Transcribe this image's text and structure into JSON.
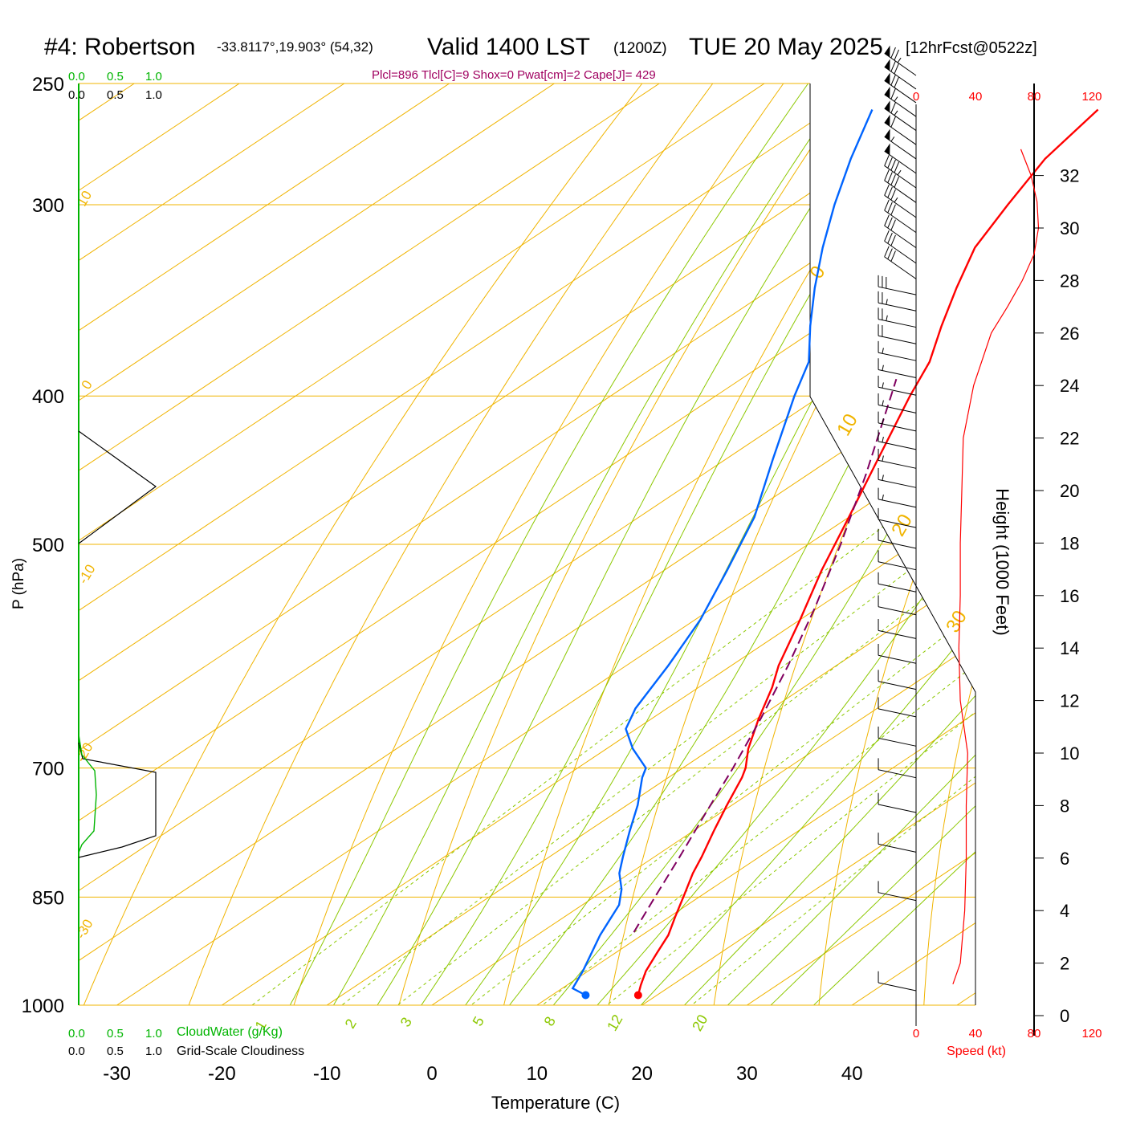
{
  "header": {
    "station": "#4: Robertson",
    "coords": "-33.8117°,19.903° (54,32)",
    "valid": "Valid 1400 LST",
    "zulu": "(1200Z)",
    "date": "TUE 20 May 2025",
    "forecast": "[12hrFcst@0522z]"
  },
  "indices": "Plcl=896 Tlcl[C]=9 Shox=0 Pwat[cm]=2 Cape[J]= 429",
  "colors": {
    "isotherm": "#f0b400",
    "dry_adiabat": "#f0b400",
    "moist_adiabat": "#8cc800",
    "mixing_ratio": "#8cc800",
    "temperature": "#ff0000",
    "dewpoint": "#0064ff",
    "parcel": "#800060",
    "cloudwater": "#00b400",
    "wind_speed": "#ff0000",
    "indices_text": "#a00060"
  },
  "cloud_panel": {
    "cloudwater_ticks": [
      "0.0",
      "0.5",
      "1.0"
    ],
    "cloudiness_ticks": [
      "0.0",
      "0.5",
      "1.0"
    ],
    "cloudwater_label": "CloudWater (g/Kg)",
    "cloudiness_label": "Grid-Scale Cloudiness"
  },
  "speed_panel": {
    "ticks": [
      "0",
      "40",
      "80",
      "120"
    ],
    "label": "Speed (kt)"
  },
  "chart_data": {
    "type": "skew-t",
    "xlabel": "Temperature (C)",
    "ylabel": "P (hPa)",
    "y2label": "Height (1000 Feet)",
    "x_ticks": [
      "-30",
      "-20",
      "-10",
      "0",
      "10",
      "20",
      "30",
      "40"
    ],
    "p_ticks": [
      "250",
      "300",
      "400",
      "500",
      "700",
      "850",
      "1000"
    ],
    "height_ticks": [
      "0",
      "2",
      "4",
      "6",
      "8",
      "10",
      "12",
      "14",
      "16",
      "18",
      "20",
      "22",
      "24",
      "26",
      "28",
      "30",
      "32"
    ],
    "isotherm_labels": [
      "10",
      "0",
      "-10",
      "-20",
      "-30",
      "0",
      "10",
      "20",
      "30"
    ],
    "mixing_ratio_labels": [
      "1",
      "2",
      "3",
      "5",
      "8",
      "12",
      "20"
    ],
    "series": [
      {
        "name": "Temperature",
        "p": [
          985,
          970,
          950,
          925,
          900,
          875,
          850,
          820,
          800,
          770,
          740,
          710,
          700,
          680,
          650,
          620,
          600,
          560,
          520,
          480,
          440,
          400,
          380,
          360,
          340,
          320,
          300,
          280,
          260
        ],
        "t": [
          18.2,
          17.0,
          15.5,
          14.0,
          12.5,
          10.5,
          8.5,
          6.0,
          4.5,
          2.0,
          -0.5,
          -3.0,
          -4.0,
          -6.5,
          -9.8,
          -13.0,
          -15.5,
          -20.0,
          -25.0,
          -30.0,
          -35.5,
          -41.5,
          -44.5,
          -48.5,
          -52.5,
          -56.5,
          -59.5,
          -62.5,
          -64.5
        ]
      },
      {
        "name": "Dewpoint",
        "p": [
          985,
          975,
          950,
          900,
          860,
          840,
          820,
          800,
          770,
          740,
          710,
          700,
          680,
          660,
          640,
          600,
          560,
          520,
          480,
          440,
          400,
          380,
          360,
          340,
          320,
          300,
          280,
          260
        ],
        "t": [
          13.2,
          11.0,
          9.5,
          6.0,
          3.5,
          1.5,
          -1.0,
          -3.0,
          -6.0,
          -9.0,
          -12.5,
          -13.5,
          -17.5,
          -21.0,
          -23.0,
          -26.0,
          -29.5,
          -34.0,
          -39.0,
          -45.5,
          -52.5,
          -56.0,
          -61.0,
          -66.0,
          -71.0,
          -76.0,
          -81.0,
          -86.0
        ]
      },
      {
        "name": "Parcel",
        "p": [
          896,
          850,
          800,
          750,
          700,
          650,
          600,
          550,
          500,
          450,
          400,
          390
        ],
        "t": [
          8.8,
          5.8,
          2.4,
          -1.3,
          -5.2,
          -9.6,
          -14.6,
          -20.3,
          -26.9,
          -34.5,
          -43.3,
          -45.2
        ]
      }
    ],
    "surface": {
      "t": 18.2,
      "td": 13.2,
      "p": 985
    },
    "wind_barbs_kt": [
      10,
      10,
      10,
      10,
      10,
      10,
      10,
      10,
      10,
      10,
      10,
      10,
      10,
      10,
      10,
      15,
      15,
      15,
      15,
      15,
      15,
      15,
      15,
      15,
      20,
      25,
      25,
      30,
      30,
      30,
      30,
      30,
      35,
      40,
      45,
      50,
      55,
      60,
      65,
      65,
      70,
      70,
      75
    ],
    "wind_speed_profile": {
      "height_kft": [
        1.2,
        2,
        4,
        6,
        8,
        10,
        12,
        14,
        16,
        18,
        20,
        22,
        24,
        26,
        27,
        28,
        29,
        30,
        31,
        32,
        33
      ],
      "speed_kt": [
        25,
        30,
        33,
        34,
        34,
        35,
        30,
        29,
        30,
        30,
        31,
        32,
        39,
        51,
        62,
        72,
        80,
        83,
        82,
        78,
        71
      ]
    }
  }
}
